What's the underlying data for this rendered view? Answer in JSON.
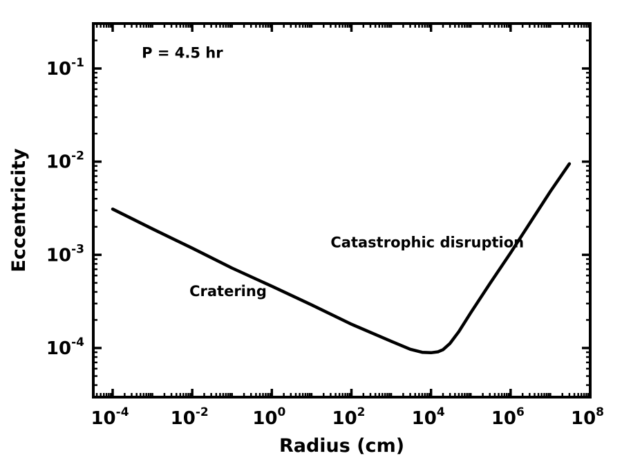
{
  "chart_data": {
    "type": "line",
    "title": "",
    "xlabel": "Radius (cm)",
    "ylabel": "Eccentricity",
    "x_scale": "log",
    "y_scale": "log",
    "xlim": [
      0.0001,
      100000000
    ],
    "ylim": [
      3e-05,
      0.3
    ],
    "x_ticks": [
      {
        "base": "10",
        "exp": "-4",
        "value": 0.0001
      },
      {
        "base": "10",
        "exp": "-2",
        "value": 0.01
      },
      {
        "base": "10",
        "exp": "0",
        "value": 1
      },
      {
        "base": "10",
        "exp": "2",
        "value": 100
      },
      {
        "base": "10",
        "exp": "4",
        "value": 10000
      },
      {
        "base": "10",
        "exp": "6",
        "value": 1000000
      },
      {
        "base": "10",
        "exp": "8",
        "value": 100000000
      }
    ],
    "y_ticks": [
      {
        "base": "10",
        "exp": "-4",
        "value": 0.0001
      },
      {
        "base": "10",
        "exp": "-3",
        "value": 0.001
      },
      {
        "base": "10",
        "exp": "-2",
        "value": 0.01
      },
      {
        "base": "10",
        "exp": "-1",
        "value": 0.1
      }
    ],
    "grid": false,
    "series": [
      {
        "color": "#000000",
        "x": [
          0.0001,
          0.001,
          0.01,
          0.1,
          1,
          10,
          100,
          1000,
          3000,
          6000,
          10000,
          15000,
          20000,
          30000,
          50000,
          100000,
          300000,
          1000000,
          10000000,
          30000000
        ],
        "y": [
          0.0031,
          0.0019,
          0.00118,
          0.00072,
          0.00046,
          0.00029,
          0.00018,
          0.000118,
          9.7e-05,
          9e-05,
          8.9e-05,
          9.1e-05,
          9.6e-05,
          0.000112,
          0.00015,
          0.00024,
          0.00049,
          0.00105,
          0.0048,
          0.0095
        ]
      }
    ],
    "annotations": [
      {
        "text": "P = 4.5 hr",
        "x": 0.00054,
        "y": 0.13
      },
      {
        "text": "Catastrophic disruption",
        "x": 30,
        "y": 0.0012
      },
      {
        "text": "Cratering",
        "x": 0.0085,
        "y": 0.00036
      }
    ]
  }
}
